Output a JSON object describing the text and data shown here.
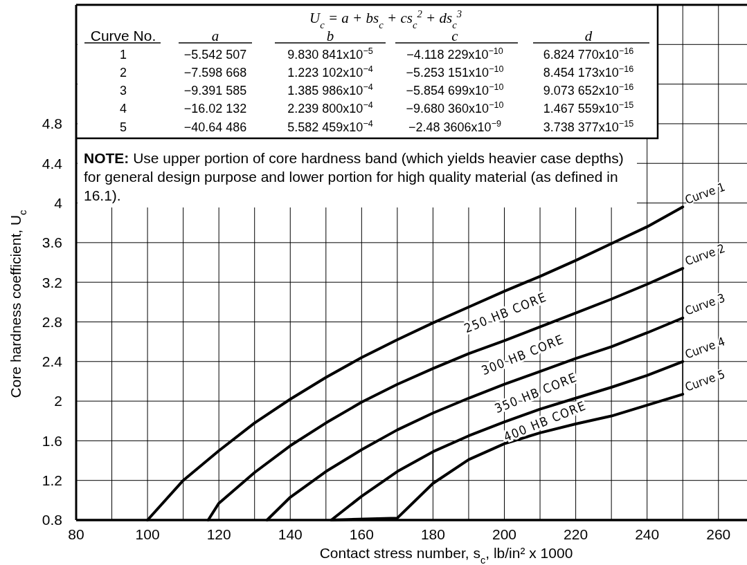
{
  "chart_data": {
    "type": "line",
    "xlabel": "Contact stress number, s$_{c}$, lb/in² x 1000",
    "ylabel": "Core hardness coefficient, U$_{c}$",
    "xlim": [
      80,
      268
    ],
    "ylim": [
      0.8,
      6.0
    ],
    "xticks": [
      80,
      {
        "value": 90,
        "label": null
      },
      100,
      {
        "value": 110,
        "label": null
      },
      120,
      {
        "value": 130,
        "label": null
      },
      140,
      {
        "value": 150,
        "label": null
      },
      160,
      {
        "value": 170,
        "label": null
      },
      180,
      {
        "value": 190,
        "label": null
      },
      200,
      {
        "value": 210,
        "label": null
      },
      220,
      {
        "value": 230,
        "label": null
      },
      240,
      {
        "value": 250,
        "label": null
      },
      260
    ],
    "yticks": [
      0.8,
      1.2,
      1.6,
      2.0,
      2.4,
      2.8,
      3.2,
      3.6,
      4.0,
      4.4,
      4.8,
      {
        "value": 5.2,
        "label": null
      },
      {
        "value": 5.6,
        "label": null
      }
    ],
    "grid": true,
    "series": [
      {
        "name": "Curve 1",
        "color": "#000000",
        "x": [
          100,
          110,
          120,
          130,
          140,
          150,
          160,
          170,
          180,
          190,
          200,
          210,
          220,
          230,
          240,
          250
        ],
        "values": [
          0.8,
          1.2,
          1.5,
          1.78,
          2.02,
          2.24,
          2.44,
          2.62,
          2.79,
          2.95,
          3.11,
          3.26,
          3.42,
          3.59,
          3.76,
          3.96
        ]
      },
      {
        "name": "Curve 2",
        "color": "#000000",
        "x": [
          117,
          120,
          130,
          140,
          150,
          160,
          170,
          180,
          190,
          200,
          210,
          220,
          230,
          240,
          250
        ],
        "values": [
          0.8,
          0.97,
          1.28,
          1.55,
          1.78,
          1.99,
          2.17,
          2.33,
          2.48,
          2.61,
          2.75,
          2.89,
          3.03,
          3.18,
          3.34
        ]
      },
      {
        "name": "Curve 3",
        "color": "#000000",
        "x": [
          133.5,
          140,
          150,
          160,
          170,
          180,
          190,
          200,
          210,
          220,
          230,
          240,
          250
        ],
        "values": [
          0.8,
          1.03,
          1.29,
          1.51,
          1.71,
          1.88,
          2.03,
          2.17,
          2.3,
          2.43,
          2.55,
          2.69,
          2.84
        ]
      },
      {
        "name": "Curve 4",
        "color": "#000000",
        "x": [
          151.5,
          160,
          170,
          180,
          190,
          200,
          210,
          220,
          230,
          240,
          250
        ],
        "values": [
          0.8,
          1.04,
          1.29,
          1.49,
          1.65,
          1.79,
          1.92,
          2.03,
          2.14,
          2.26,
          2.4
        ]
      },
      {
        "name": "Curve 5",
        "color": "#000000",
        "x": [
          151.5,
          170,
          180,
          190,
          200,
          210,
          220,
          230,
          240,
          250
        ],
        "values": [
          0.8,
          0.82,
          1.17,
          1.41,
          1.57,
          1.68,
          1.77,
          1.85,
          1.96,
          2.07
        ]
      },
      {
        "color": "#000000",
        "x": [
          250,
          250
        ],
        "values": [
          3.34,
          2.07
        ]
      },
      {
        "color": "#000000",
        "x": [
          180,
          180
        ],
        "values": [
          1.49,
          1.17
        ]
      }
    ],
    "annotations": [
      "U$_{c}$ = a + bs$_{c}$ + cs$_{c}$$^{2}$ + ds$_{c}$$^{3}$",
      "Curve No.",
      "a",
      "b",
      "c",
      "d",
      "1",
      "−5.542 507",
      "9.830 841x10$^{−5}$",
      "−4.118 229x10$^{−10}$",
      "6.824 770x10$^{−16}$",
      "2",
      "−7.598 668",
      "1.223 102x10$^{−4}$",
      "−5.253 151x10$^{−10}$",
      "8.454 173x10$^{−16}$",
      "3",
      "−9.391 585",
      "1.385 986x10$^{−4}$",
      "−5.854 699x10$^{−10}$",
      "9.073 652x10$^{−16}$",
      "4",
      "−16.02 132",
      "2.239 800x10$^{−4}$",
      "−9.680 360x10$^{−10}$",
      "1.467 559x10$^{−15}$",
      "5",
      "−40.64 486",
      "5.582 459x10$^{−4}$",
      "−2.48 3606x10$^{−9}$",
      "3.738 377x10$^{−15}$",
      "NOTE: Use upper portion of core hardness band (which yields heavier case depths) for general design purpose and lower portion for high quality material (as defined in 16.1).",
      "250 HB CORE",
      "300 HB CORE",
      "350 HB CORE",
      "400 HB CORE"
    ]
  }
}
